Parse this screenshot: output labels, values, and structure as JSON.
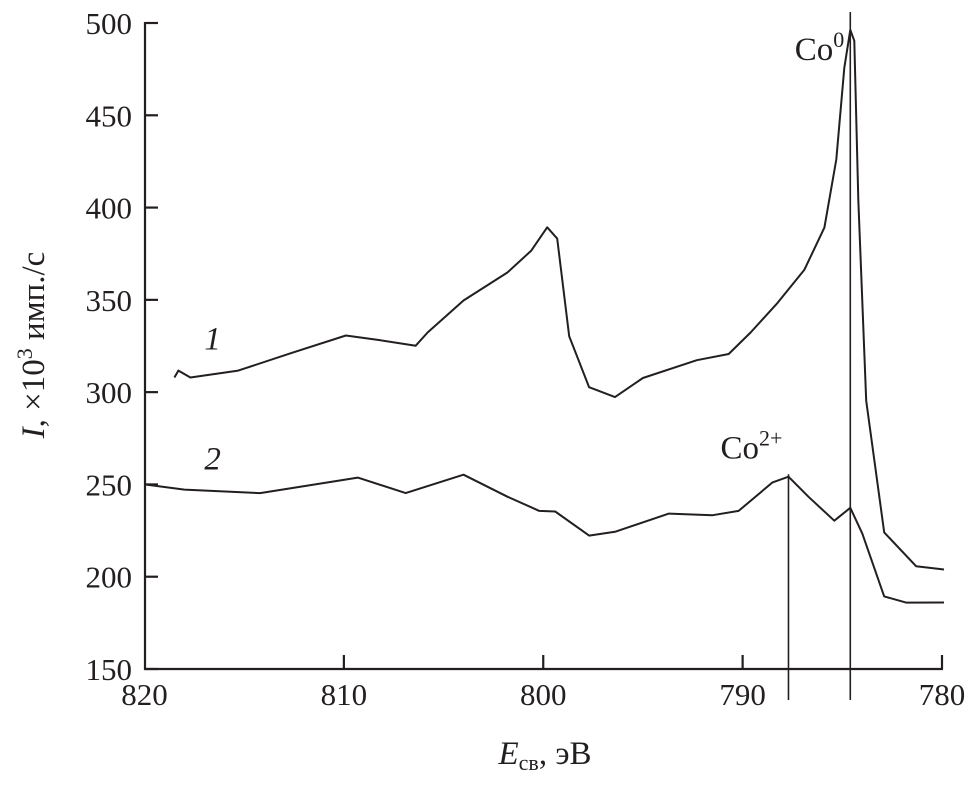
{
  "chart_data": {
    "type": "line",
    "title": "",
    "xlabel_parts": {
      "var": "E",
      "sub": "св",
      "unit": ", эВ"
    },
    "ylabel_parts": {
      "var": "I",
      "text": ", ×10",
      "sup": "3",
      "unit": " имп./с"
    },
    "xlim": [
      820,
      780
    ],
    "ylim": [
      150,
      500
    ],
    "xticks": [
      820,
      810,
      800,
      790,
      780
    ],
    "yticks": [
      150,
      200,
      250,
      300,
      350,
      400,
      450,
      500
    ],
    "grid": false,
    "series": [
      {
        "name": "1",
        "x": [
          818.5,
          818.3,
          817.7,
          815.3,
          812.6,
          809.9,
          808.3,
          806.4,
          805.8,
          804,
          801.8,
          800.6,
          799.8,
          799.3,
          798.7,
          797.7,
          796.4,
          795,
          792.3,
          790.7,
          789.6,
          788.3,
          786.9,
          785.9,
          785.3,
          784.9,
          784.6,
          784.4,
          784.2,
          783.8,
          782.9,
          781.3,
          779.9
        ],
        "y": [
          307.6,
          312,
          307.6,
          312,
          321,
          331,
          328,
          325.5,
          332,
          350,
          364.5,
          377,
          389,
          383.5,
          330,
          303,
          297,
          308,
          317,
          321,
          332,
          348,
          366,
          389.5,
          425.7,
          476,
          496,
          490.7,
          404,
          295.7,
          223.7,
          206,
          203.6
        ]
      },
      {
        "name": "2",
        "x": [
          820,
          818,
          814.2,
          809.3,
          806.9,
          804,
          801.8,
          800.2,
          799.4,
          797.7,
          796.4,
          793.7,
          791.5,
          790.2,
          788.5,
          787.7,
          786.7,
          785.4,
          784.6,
          784,
          782.9,
          781.8,
          779.9
        ],
        "y": [
          249.7,
          247.5,
          245,
          254,
          245,
          255.6,
          243,
          236,
          235,
          222.6,
          224,
          234.5,
          233,
          236,
          250.8,
          254.5,
          243,
          230.7,
          237,
          223.7,
          189,
          186.3,
          185.7
        ]
      }
    ],
    "curve_labels": [
      {
        "text": "1",
        "x": 817,
        "y": 323
      },
      {
        "text": "2",
        "x": 817,
        "y": 258
      }
    ],
    "annotations": [
      {
        "text": "Co",
        "sup": "0",
        "x": 784.6,
        "label_y": 480
      },
      {
        "text": "Co",
        "sup": "2+",
        "x": 787.7,
        "label_y": 262
      }
    ]
  }
}
